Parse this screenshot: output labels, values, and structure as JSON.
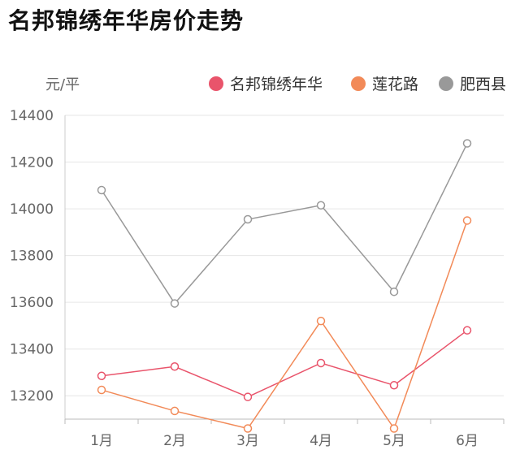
{
  "chart_data": {
    "type": "line",
    "title": "名邦锦绣年华房价走势",
    "ylabel": "元/平",
    "xlabel": "",
    "categories": [
      "1月",
      "2月",
      "3月",
      "4月",
      "5月",
      "6月"
    ],
    "ylim": [
      13100,
      14400
    ],
    "yticks": [
      "13200",
      "13400",
      "13600",
      "13800",
      "14000",
      "14200",
      "14400"
    ],
    "grid": true,
    "legend_position": "top-right",
    "series": [
      {
        "name": "名邦锦绣年华",
        "color": "#e9546b",
        "values": [
          13285,
          13325,
          13195,
          13340,
          13245,
          13480
        ]
      },
      {
        "name": "莲花路",
        "color": "#f28a58",
        "values": [
          13225,
          13135,
          13060,
          13520,
          13060,
          13950
        ]
      },
      {
        "name": "肥西县",
        "color": "#999999",
        "values": [
          14080,
          13595,
          13955,
          14015,
          13645,
          14280
        ]
      }
    ]
  }
}
